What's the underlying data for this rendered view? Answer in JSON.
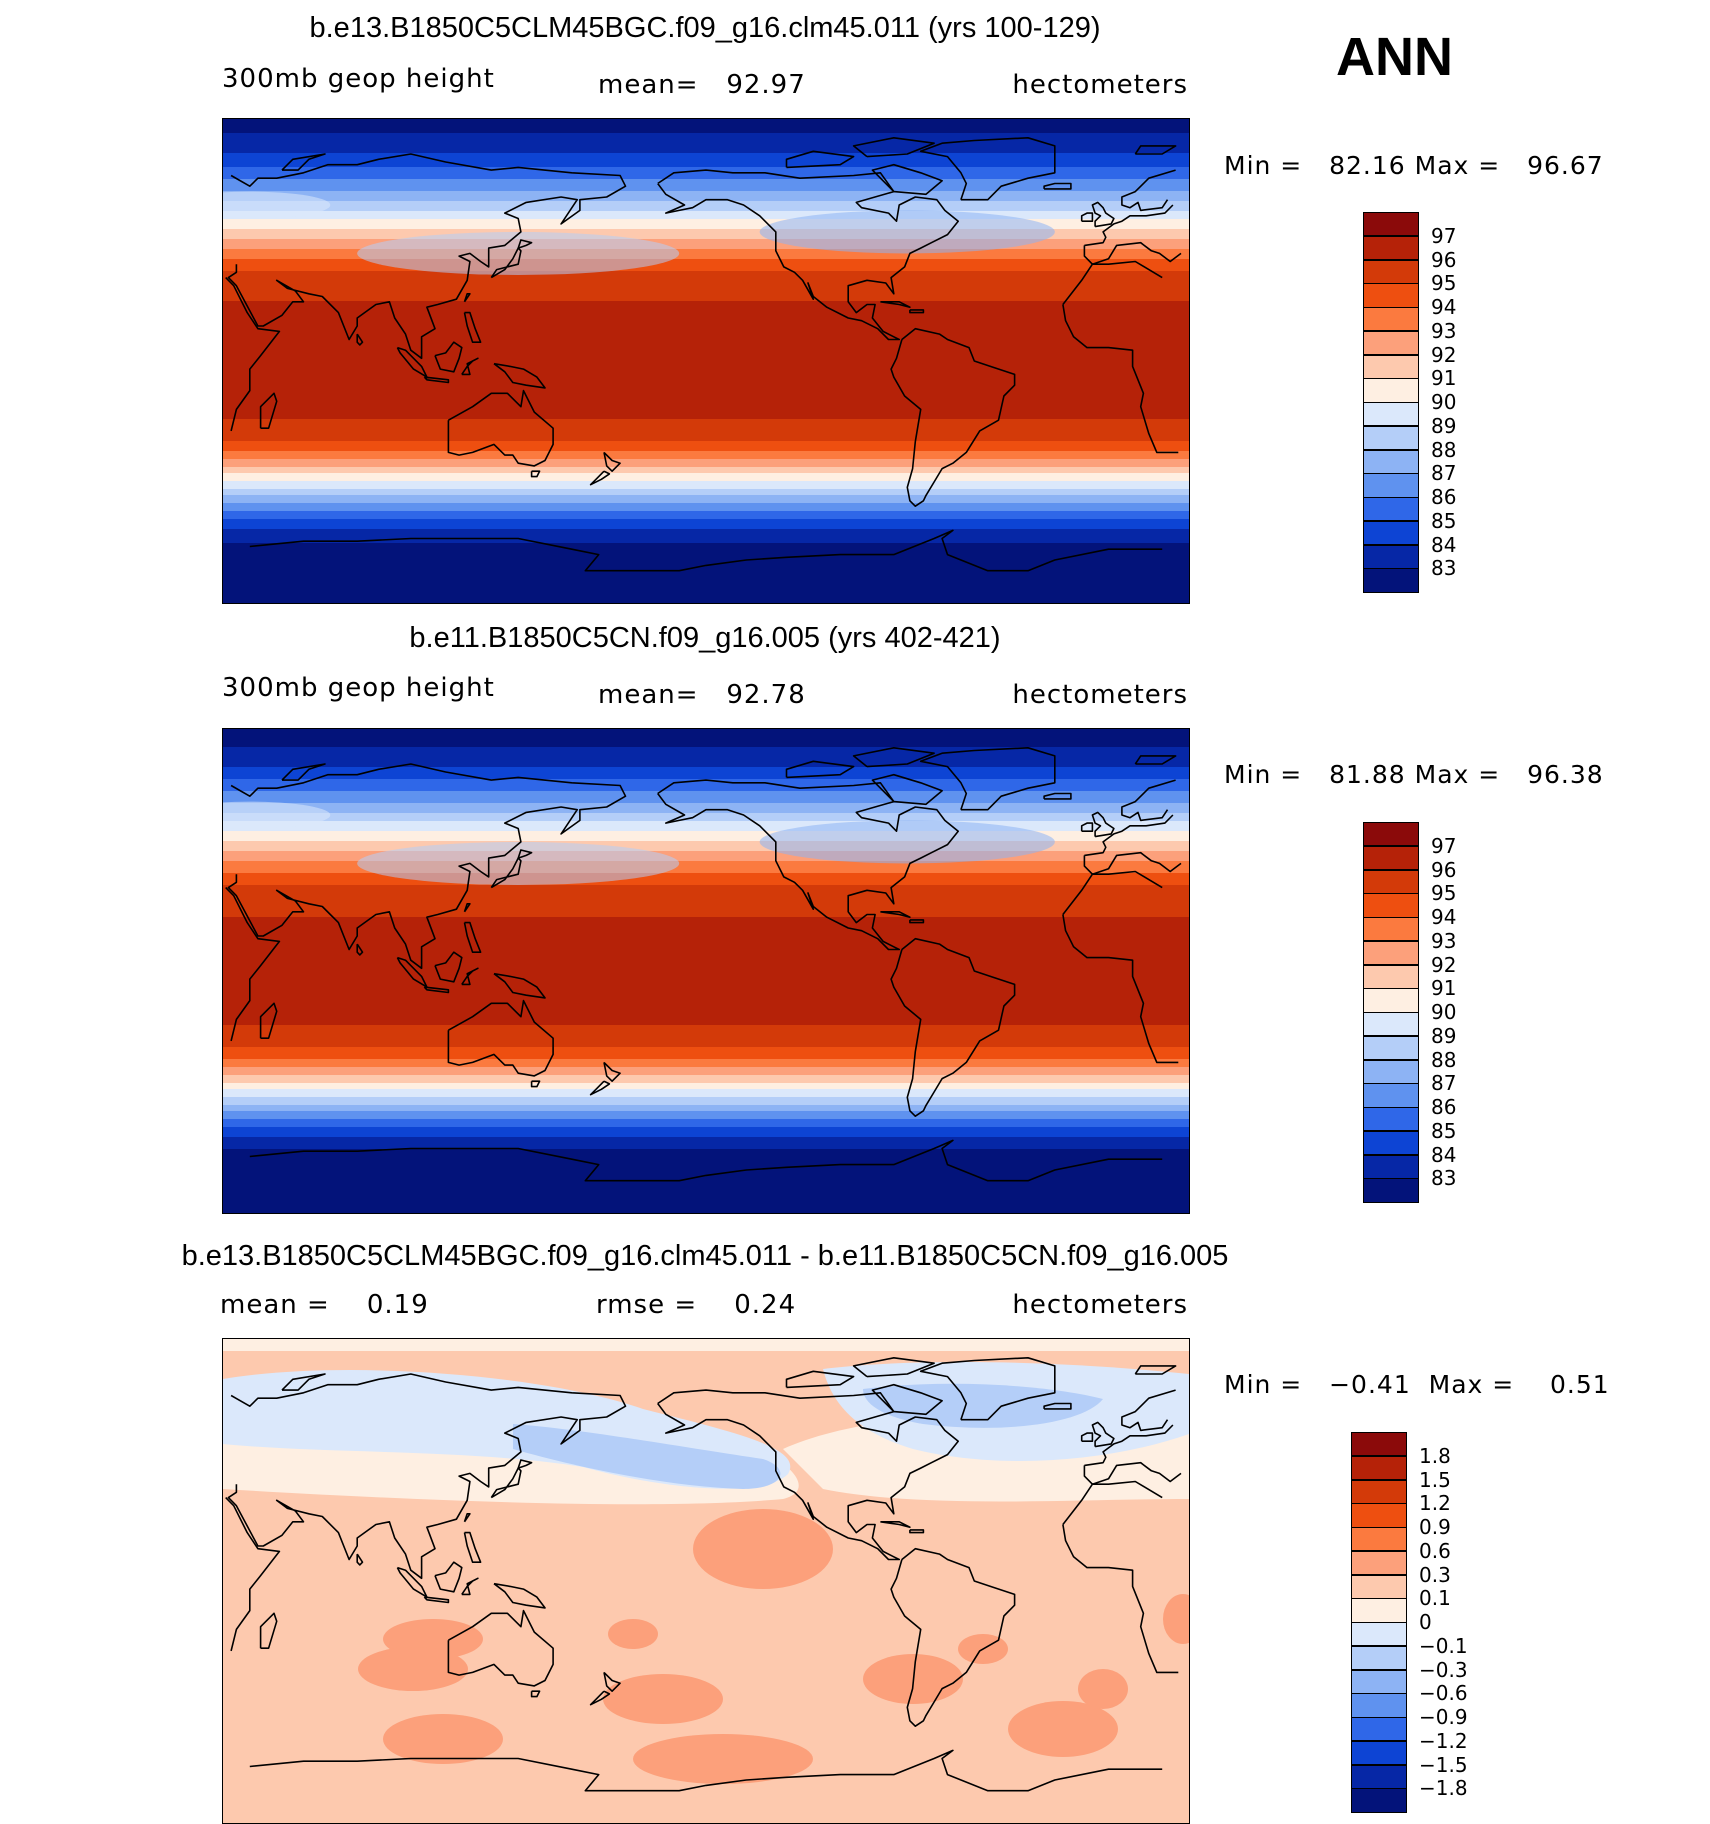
{
  "season": "ANN",
  "chart_data": [
    {
      "type": "heatmap",
      "title": "b.e13.B1850C5CLM45BGC.f09_g16.clm45.011 (yrs 100-129)",
      "field": "300mb geop height",
      "mean_label": "mean=",
      "mean": "92.97",
      "units": "hectometers",
      "min_label": "Min =",
      "min": "82.16",
      "max_label": "Max =",
      "max": "96.67",
      "colorbar_labels": [
        "97",
        "96",
        "95",
        "94",
        "93",
        "92",
        "91",
        "90",
        "89",
        "88",
        "87",
        "86",
        "85",
        "84",
        "83"
      ],
      "colorbar_colors": [
        "#8b0a0a",
        "#b52208",
        "#d33a09",
        "#ee4f10",
        "#fb7a3f",
        "#fca07b",
        "#fdc9ae",
        "#feefe2",
        "#dbe8fb",
        "#b4cef8",
        "#8db3f4",
        "#5f92ef",
        "#2f67e8",
        "#0d44d4",
        "#0627a6",
        "#03137a"
      ],
      "lat_profile": [
        [
          90,
          82.3
        ],
        [
          75,
          84.3
        ],
        [
          62,
          87.3
        ],
        [
          52,
          90.2
        ],
        [
          42,
          93.0
        ],
        [
          32,
          95.3
        ],
        [
          20,
          96.2
        ],
        [
          0,
          96.6
        ],
        [
          -20,
          96.2
        ],
        [
          -30,
          95.0
        ],
        [
          -38,
          92.5
        ],
        [
          -45,
          89.8
        ],
        [
          -52,
          87.3
        ],
        [
          -60,
          84.5
        ],
        [
          -70,
          82.6
        ],
        [
          -90,
          82.2
        ]
      ]
    },
    {
      "type": "heatmap",
      "title": "b.e11.B1850C5CN.f09_g16.005 (yrs 402-421)",
      "field": "300mb geop height",
      "mean_label": "mean=",
      "mean": "92.78",
      "units": "hectometers",
      "min_label": "Min =",
      "min": "81.88",
      "max_label": "Max =",
      "max": "96.38",
      "colorbar_labels": [
        "97",
        "96",
        "95",
        "94",
        "93",
        "92",
        "91",
        "90",
        "89",
        "88",
        "87",
        "86",
        "85",
        "84",
        "83"
      ],
      "colorbar_colors": [
        "#8b0a0a",
        "#b52208",
        "#d33a09",
        "#ee4f10",
        "#fb7a3f",
        "#fca07b",
        "#fdc9ae",
        "#feefe2",
        "#dbe8fb",
        "#b4cef8",
        "#8db3f4",
        "#5f92ef",
        "#2f67e8",
        "#0d44d4",
        "#0627a6",
        "#03137a"
      ],
      "lat_profile": [
        [
          90,
          82.1
        ],
        [
          75,
          84.1
        ],
        [
          62,
          87.1
        ],
        [
          52,
          90.0
        ],
        [
          42,
          92.8
        ],
        [
          32,
          95.0
        ],
        [
          20,
          96.0
        ],
        [
          0,
          96.4
        ],
        [
          -20,
          96.0
        ],
        [
          -30,
          94.8
        ],
        [
          -38,
          92.3
        ],
        [
          -45,
          89.6
        ],
        [
          -52,
          87.1
        ],
        [
          -60,
          84.3
        ],
        [
          -70,
          82.3
        ],
        [
          -90,
          81.9
        ]
      ]
    },
    {
      "type": "heatmap",
      "title": "b.e13.B1850C5CLM45BGC.f09_g16.clm45.011 - b.e11.B1850C5CN.f09_g16.005",
      "mean_label": "mean =",
      "mean": "0.19",
      "rmse_label": "rmse =",
      "rmse": "0.24",
      "units": "hectometers",
      "min_label": "Min =",
      "min": "−0.41",
      "max_label": "Max =",
      "max": "0.51",
      "colorbar_labels": [
        "1.8",
        "1.5",
        "1.2",
        "0.9",
        "0.6",
        "0.3",
        "0.1",
        "0",
        "−0.1",
        "−0.3",
        "−0.6",
        "−0.9",
        "−1.2",
        "−1.5",
        "−1.8"
      ],
      "colorbar_colors": [
        "#8b0a0a",
        "#b52208",
        "#d33a09",
        "#ee4f10",
        "#fb7a3f",
        "#fca07b",
        "#fdc9ae",
        "#feefe2",
        "#dbe8fb",
        "#b4cef8",
        "#8db3f4",
        "#5f92ef",
        "#2f67e8",
        "#0d44d4",
        "#0627a6",
        "#03137a"
      ]
    }
  ]
}
